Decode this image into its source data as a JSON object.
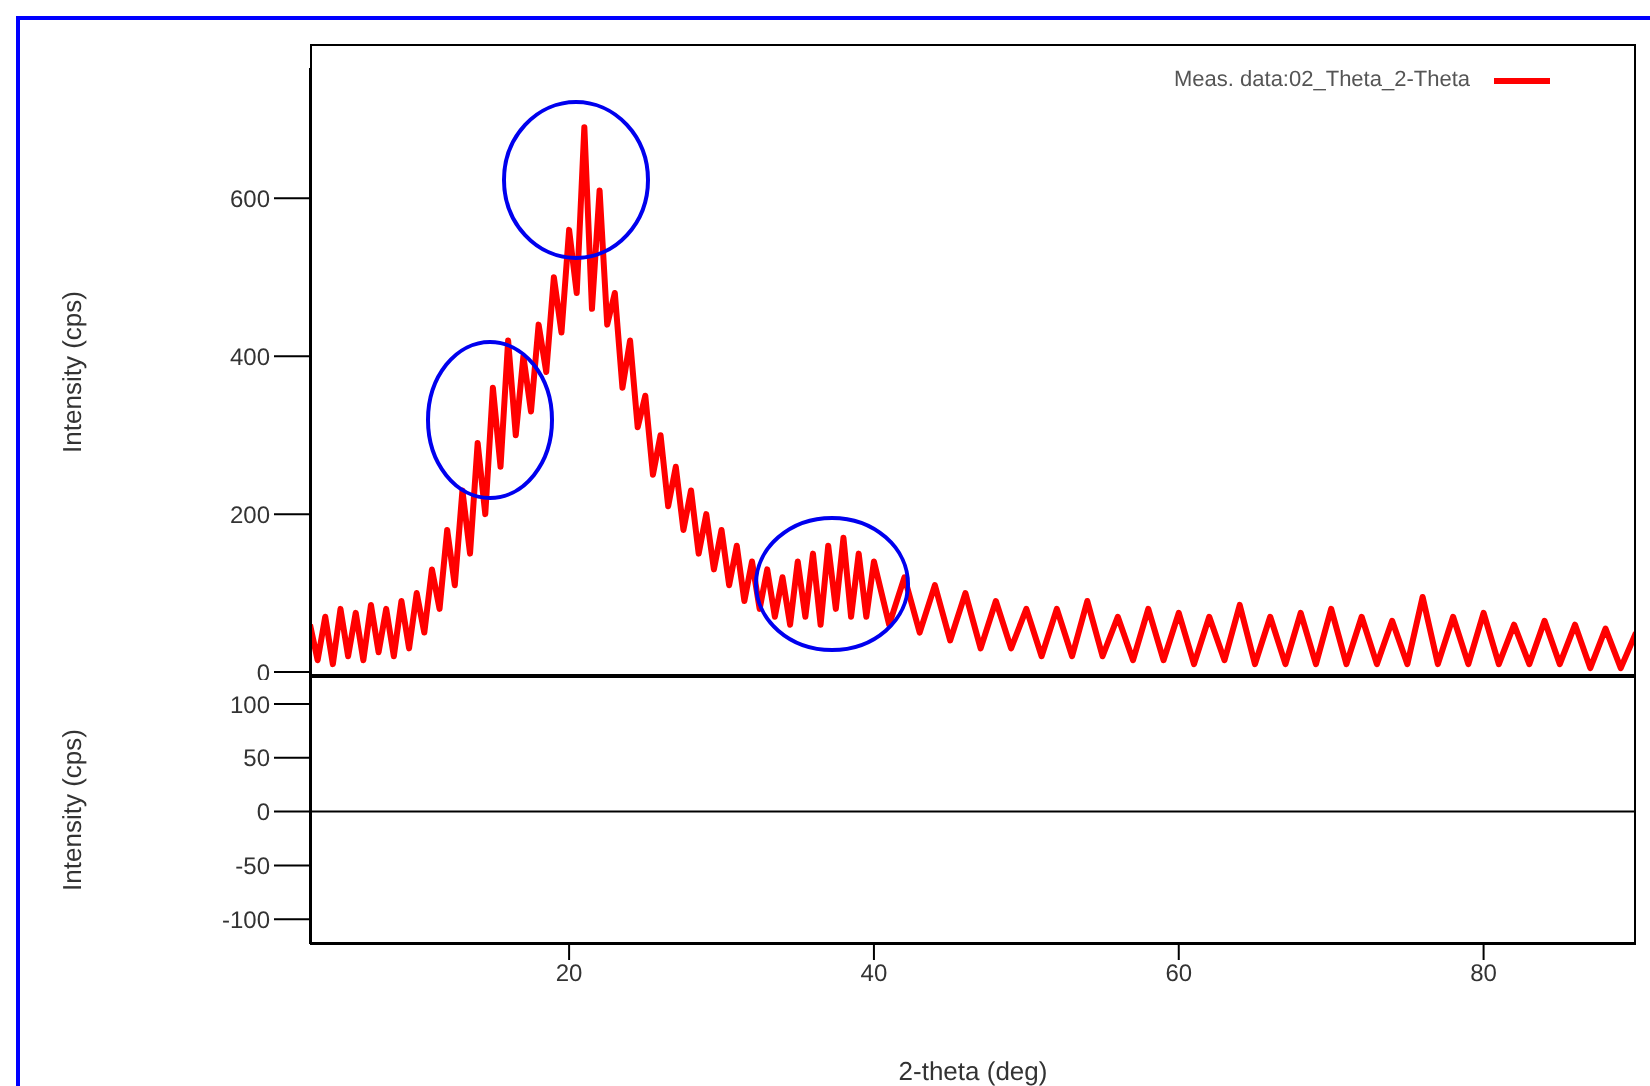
{
  "chart_data": [
    {
      "type": "line",
      "ylabel": "Intensity (cps)",
      "xlim": [
        3,
        90
      ],
      "xticks": [
        20,
        40,
        60,
        80
      ],
      "ylim": [
        -5,
        765
      ],
      "yticks": [
        0,
        200,
        400,
        600
      ],
      "tick_labels": "y",
      "legend": "top right",
      "marker": "none",
      "line_style": "solid",
      "grid": false,
      "series": [
        {
          "name": "Meas. data:02_Theta_2-Theta",
          "color": "#ff0000",
          "x": [
            3,
            3.5,
            4,
            4.5,
            5,
            5.5,
            6,
            6.5,
            7,
            7.5,
            8,
            8.5,
            9,
            9.5,
            10,
            10.5,
            11,
            11.5,
            12,
            12.5,
            13,
            13.5,
            14,
            14.5,
            15,
            15.5,
            16,
            16.5,
            17,
            17.5,
            18,
            18.5,
            19,
            19.5,
            20,
            20.5,
            21,
            21.5,
            22,
            22.5,
            23,
            23.5,
            24,
            24.5,
            25,
            25.5,
            26,
            26.5,
            27,
            27.5,
            28,
            28.5,
            29,
            29.5,
            30,
            30.5,
            31,
            31.5,
            32,
            32.5,
            33,
            33.5,
            34,
            34.5,
            35,
            35.5,
            36,
            36.5,
            37,
            37.5,
            38,
            38.5,
            39,
            39.5,
            40,
            41,
            42,
            43,
            44,
            45,
            46,
            47,
            48,
            49,
            50,
            51,
            52,
            53,
            54,
            55,
            56,
            57,
            58,
            59,
            60,
            61,
            62,
            63,
            64,
            65,
            66,
            67,
            68,
            69,
            70,
            71,
            72,
            73,
            74,
            75,
            76,
            77,
            78,
            79,
            80,
            81,
            82,
            83,
            84,
            85,
            86,
            87,
            88,
            89,
            90
          ],
          "values": [
            60,
            15,
            70,
            10,
            80,
            20,
            75,
            15,
            85,
            25,
            80,
            20,
            90,
            30,
            100,
            50,
            130,
            80,
            180,
            110,
            230,
            150,
            290,
            200,
            360,
            260,
            420,
            300,
            400,
            330,
            440,
            380,
            500,
            430,
            560,
            480,
            690,
            460,
            610,
            440,
            480,
            360,
            420,
            310,
            350,
            250,
            300,
            210,
            260,
            180,
            230,
            150,
            200,
            130,
            180,
            110,
            160,
            90,
            140,
            80,
            130,
            70,
            120,
            60,
            140,
            70,
            150,
            60,
            160,
            80,
            170,
            70,
            150,
            70,
            140,
            60,
            120,
            50,
            110,
            40,
            100,
            30,
            90,
            30,
            80,
            20,
            80,
            20,
            90,
            20,
            70,
            15,
            80,
            15,
            75,
            10,
            70,
            15,
            85,
            10,
            70,
            10,
            75,
            10,
            80,
            10,
            70,
            10,
            65,
            10,
            95,
            10,
            70,
            10,
            75,
            10,
            60,
            10,
            65,
            10,
            60,
            5,
            55,
            5,
            50
          ]
        }
      ]
    },
    {
      "type": "line",
      "ylabel": "Intensity (cps)",
      "xlabel": "2-theta (deg)",
      "xlim": [
        3,
        90
      ],
      "xticks": [
        20,
        40,
        60,
        80
      ],
      "ylim": [
        -123,
        126
      ],
      "yticks": [
        100,
        50,
        0,
        -50,
        -100
      ],
      "grid": false,
      "ref_lines": [
        {
          "axis": "y",
          "value": 0,
          "color": "#000000"
        }
      ]
    }
  ]
}
